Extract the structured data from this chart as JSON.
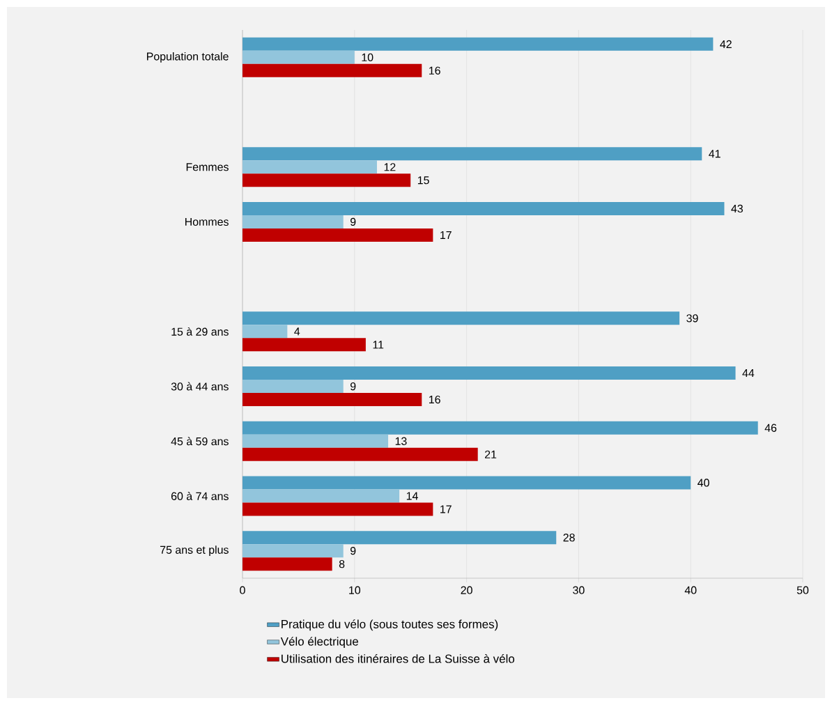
{
  "chart_data": {
    "type": "bar",
    "orientation": "horizontal",
    "categories": [
      "Population totale",
      null,
      "Femmes",
      "Hommes",
      null,
      "15 à 29 ans",
      "30 à 44 ans",
      "45 à 59 ans",
      "60 à 74 ans",
      "75 ans et plus"
    ],
    "series": [
      {
        "name": "Pratique du vélo (sous toutes ses formes)",
        "color": "#4f9fc4",
        "values": [
          42,
          null,
          41,
          43,
          null,
          39,
          44,
          46,
          40,
          28
        ]
      },
      {
        "name": "Vélo électrique",
        "color": "#92c5dc",
        "values": [
          10,
          null,
          12,
          9,
          null,
          4,
          9,
          13,
          14,
          9
        ]
      },
      {
        "name": "Utilisation des itinéraires de La Suisse à vélo",
        "color": "#c00000",
        "values": [
          16,
          null,
          15,
          17,
          null,
          11,
          16,
          21,
          17,
          8
        ]
      }
    ],
    "xlim": [
      0,
      50
    ],
    "xticks": [
      0,
      10,
      20,
      30,
      40,
      50
    ],
    "grid": "x",
    "legend": "bottom",
    "data_labels": true
  }
}
